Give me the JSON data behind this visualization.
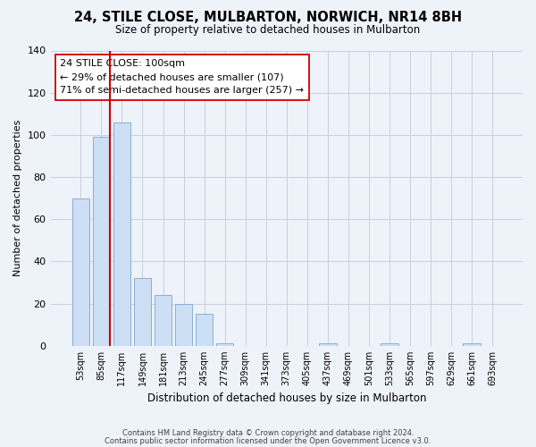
{
  "title": "24, STILE CLOSE, MULBARTON, NORWICH, NR14 8BH",
  "subtitle": "Size of property relative to detached houses in Mulbarton",
  "xlabel": "Distribution of detached houses by size in Mulbarton",
  "ylabel": "Number of detached properties",
  "bar_labels": [
    "53sqm",
    "85sqm",
    "117sqm",
    "149sqm",
    "181sqm",
    "213sqm",
    "245sqm",
    "277sqm",
    "309sqm",
    "341sqm",
    "373sqm",
    "405sqm",
    "437sqm",
    "469sqm",
    "501sqm",
    "533sqm",
    "565sqm",
    "597sqm",
    "629sqm",
    "661sqm",
    "693sqm"
  ],
  "bar_values": [
    70,
    99,
    106,
    32,
    24,
    20,
    15,
    1,
    0,
    0,
    0,
    0,
    1,
    0,
    0,
    1,
    0,
    0,
    0,
    1,
    0
  ],
  "bar_color": "#ccdff5",
  "bar_edge_color": "#87afd4",
  "ylim": [
    0,
    140
  ],
  "yticks": [
    0,
    20,
    40,
    60,
    80,
    100,
    120,
    140
  ],
  "property_line_color": "#cc0000",
  "annotation_line1": "24 STILE CLOSE: 100sqm",
  "annotation_line2": "← 29% of detached houses are smaller (107)",
  "annotation_line3": "71% of semi-detached houses are larger (257) →",
  "footnote1": "Contains HM Land Registry data © Crown copyright and database right 2024.",
  "footnote2": "Contains public sector information licensed under the Open Government Licence v3.0.",
  "background_color": "#eef2f9",
  "plot_background_color": "#eef2f9",
  "grid_color": "#c8d0dc"
}
